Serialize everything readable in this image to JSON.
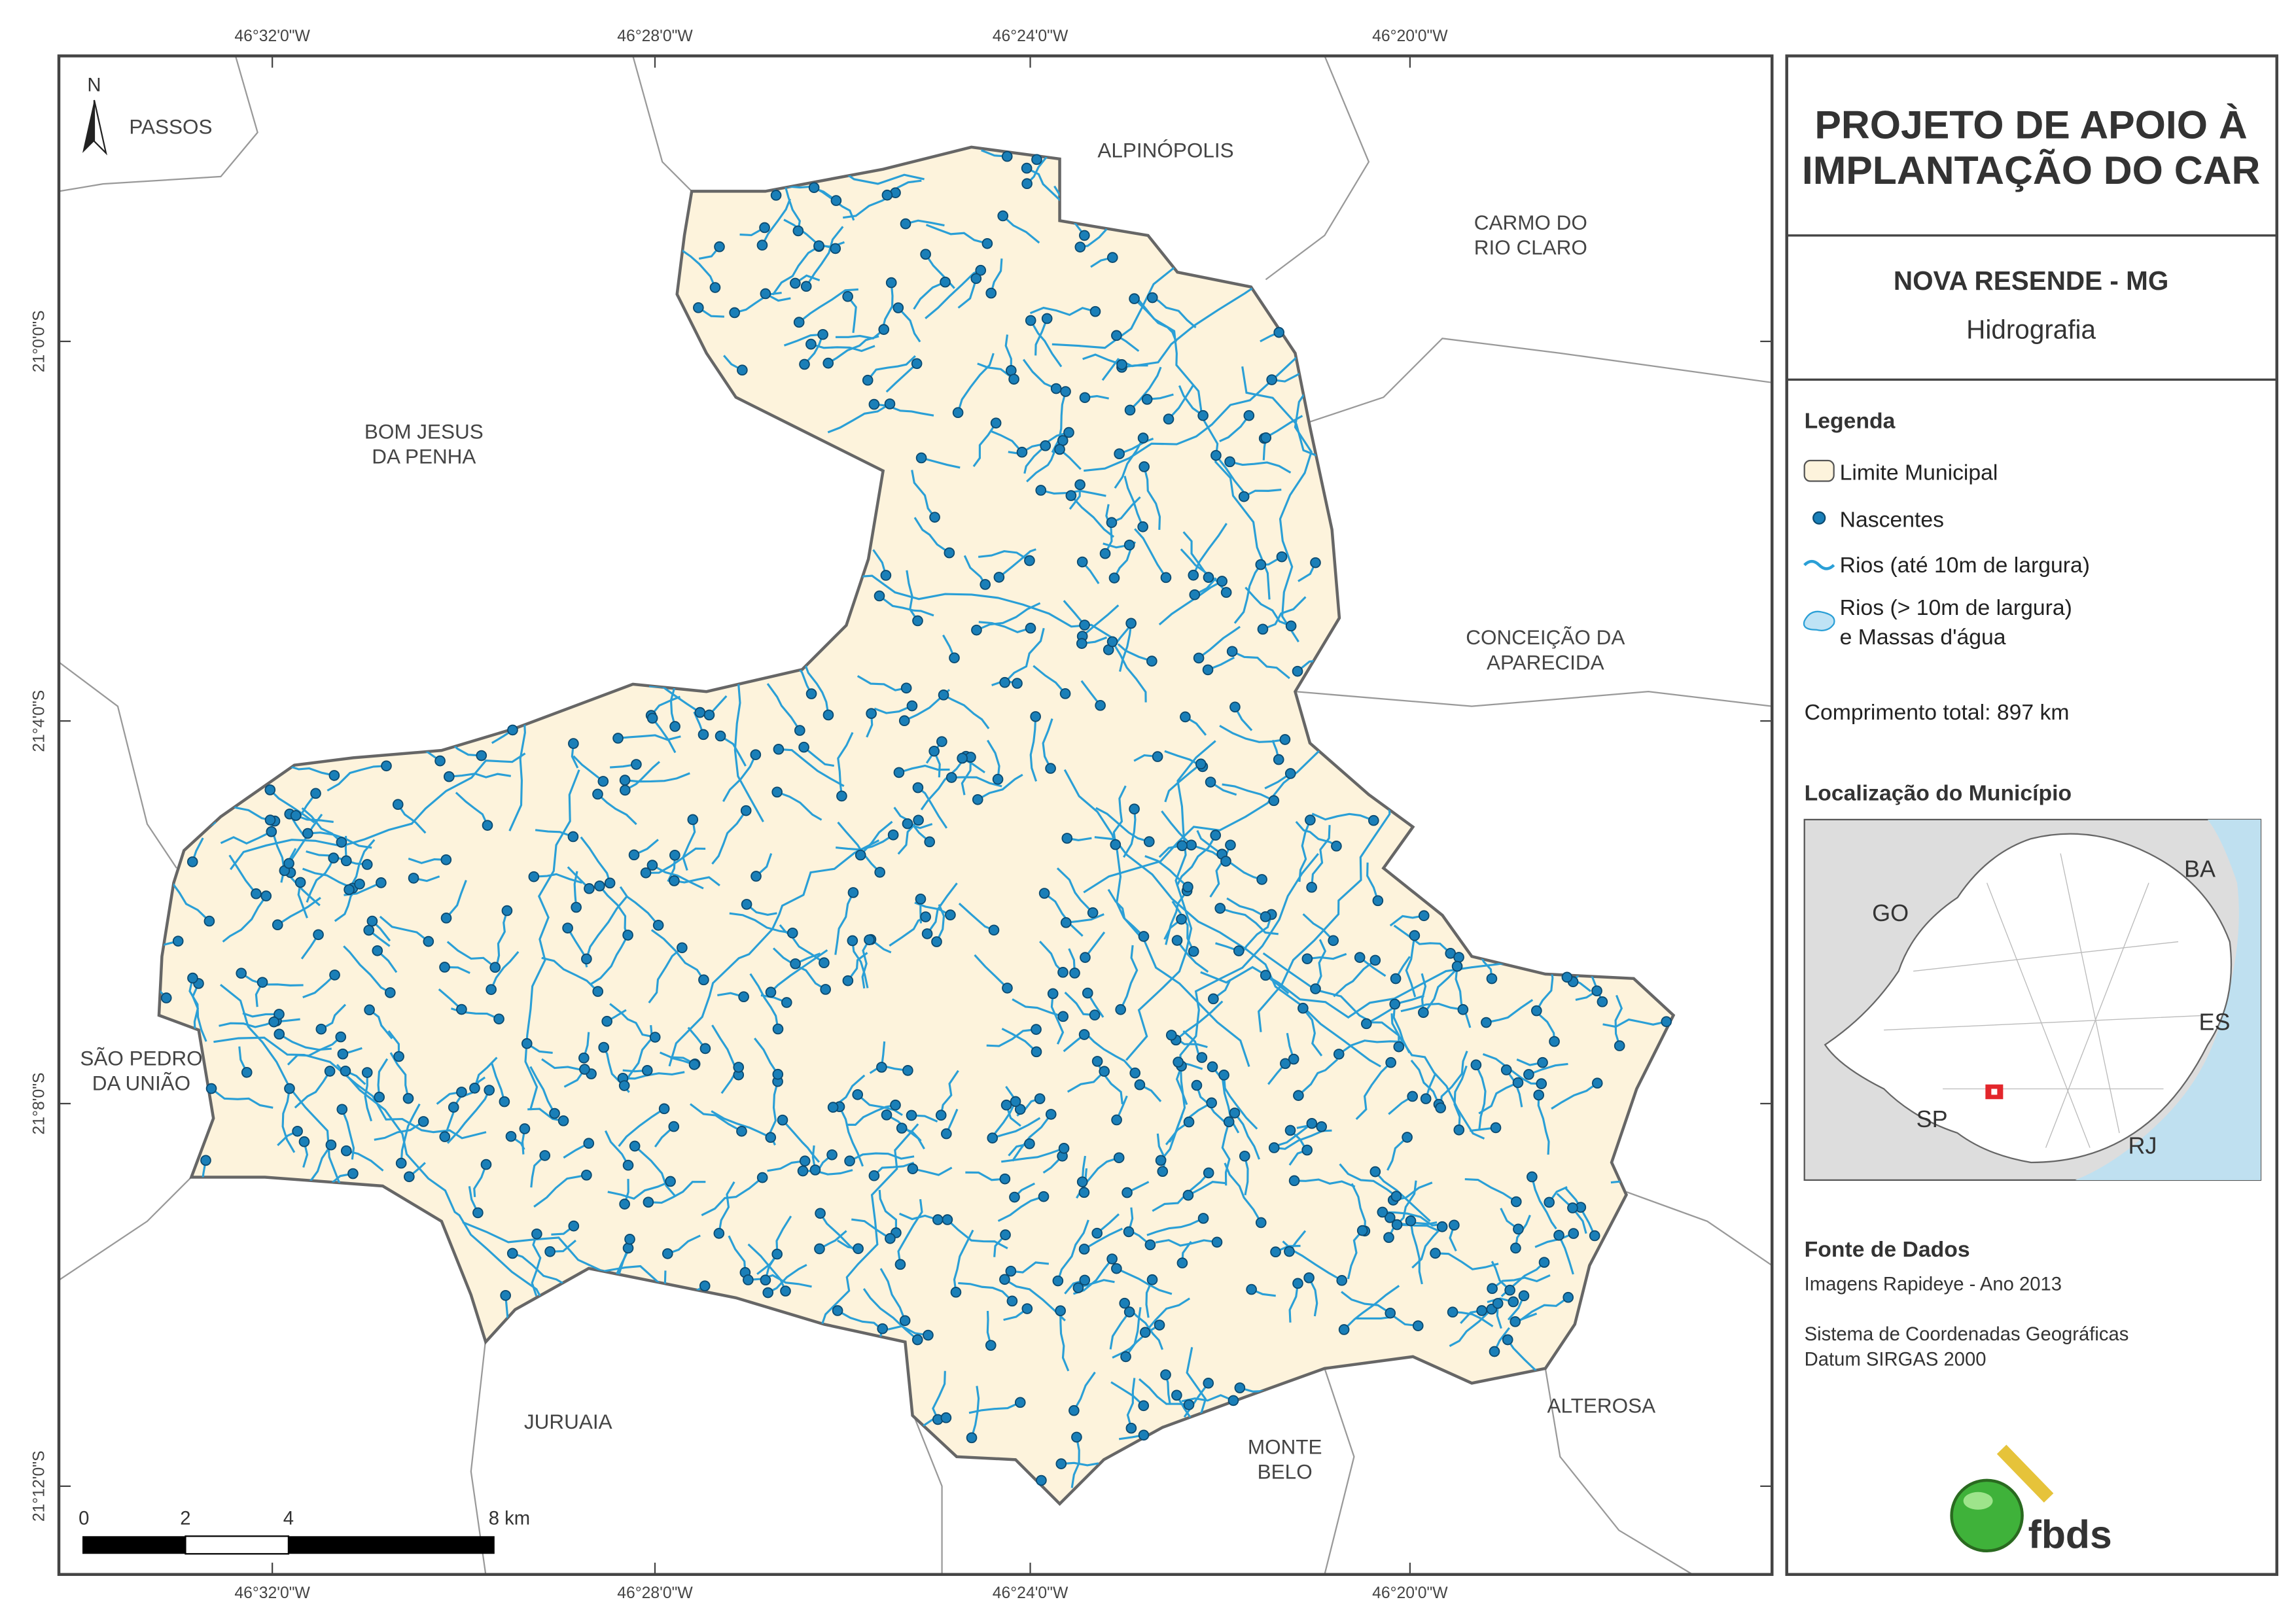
{
  "map": {
    "north": "N",
    "top_longitudes": [
      "46°32'0\"W",
      "46°28'0\"W",
      "46°24'0\"W",
      "46°20'0\"W"
    ],
    "bottom_longitudes": [
      "46°32'0\"W",
      "46°28'0\"W",
      "46°24'0\"W",
      "46°20'0\"W"
    ],
    "latitudes": [
      "21°0'0\"S",
      "21°4'0\"S",
      "21°8'0\"S",
      "21°12'0\"S"
    ],
    "neighbors": [
      {
        "lines": [
          "PASSOS"
        ]
      },
      {
        "lines": [
          "ALPINÓPOLIS"
        ]
      },
      {
        "lines": [
          "CARMO DO",
          "RIO CLARO"
        ]
      },
      {
        "lines": [
          "BOM JESUS",
          "DA PENHA"
        ]
      },
      {
        "lines": [
          "CONCEIÇÃO DA",
          "APARECIDA"
        ]
      },
      {
        "lines": [
          "SÃO PEDRO",
          "DA UNIÃO"
        ]
      },
      {
        "lines": [
          "JURUAIA"
        ]
      },
      {
        "lines": [
          "MONTE",
          "BELO"
        ]
      },
      {
        "lines": [
          "ALTEROSA"
        ]
      }
    ],
    "scale_labels": [
      "0",
      "2",
      "4",
      "8 km"
    ]
  },
  "panel": {
    "title": [
      "PROJETO DE APOIO À",
      "IMPLANTAÇÃO DO CAR"
    ],
    "municipality": "NOVA RESENDE - MG",
    "theme": "Hidrografia",
    "legend": {
      "heading": "Legenda",
      "items": [
        "Limite Municipal",
        "Nascentes",
        "Rios (até 10m de largura)",
        "Rios (> 10m de largura)",
        "e Massas d'água"
      ],
      "total": "Comprimento total: 897 km"
    },
    "location": {
      "heading": "Localização do Município",
      "labels": [
        "GO",
        "BA",
        "ES",
        "SP",
        "RJ"
      ]
    },
    "source": {
      "heading": "Fonte de Dados",
      "lines": [
        "Imagens Rapideye - Ano 2013",
        "Sistema de Coordenadas Geográficas",
        "Datum SIRGAS 2000"
      ]
    },
    "logo": "fbds"
  }
}
